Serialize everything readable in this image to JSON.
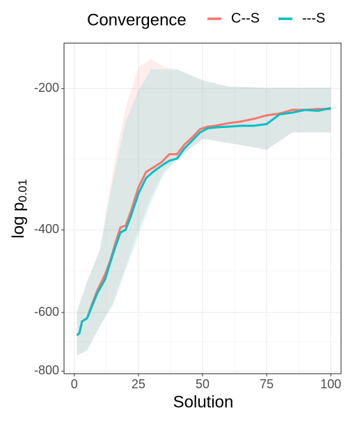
{
  "chart_data": {
    "type": "line",
    "legend_title": "Convergence",
    "legend_position": "top",
    "xlabel": "Solution",
    "ylabel": "log p",
    "ylabel_sub": "0.01",
    "xlim": [
      -4,
      104
    ],
    "xticks": [
      0,
      25,
      50,
      75,
      100
    ],
    "ylim": [
      -810,
      -160
    ],
    "yticks": [
      -200,
      -400,
      -600,
      -800
    ],
    "yscale": "log",
    "grid": true,
    "x": [
      1,
      2,
      3,
      5,
      7,
      9,
      12,
      14,
      16,
      18,
      20,
      22,
      25,
      28,
      31,
      34,
      37,
      40,
      43,
      46,
      49,
      52,
      55,
      60,
      65,
      70,
      75,
      80,
      85,
      90,
      95,
      100
    ],
    "band_x": [
      1,
      5,
      10,
      15,
      20,
      25,
      30,
      35,
      40,
      50,
      60,
      75,
      85,
      100
    ],
    "series": [
      {
        "name": "C--S",
        "color": "#F8766D",
        "values": [
          -671,
          -664,
          -627,
          -617,
          -574,
          -538,
          -498,
          -465,
          -427,
          -395,
          -392,
          -366,
          -325,
          -301,
          -294,
          -287,
          -276,
          -276,
          -263,
          -254,
          -244,
          -241,
          -240,
          -237,
          -235,
          -232,
          -228,
          -226,
          -222,
          -222,
          -221,
          -221
        ],
        "upper": [
          -600,
          -515,
          -440,
          -300,
          -220,
          -180,
          -173,
          -180,
          -182,
          -192,
          -198,
          -199,
          -199,
          -199
        ],
        "lower": [
          -741,
          -720,
          -640,
          -575,
          -480,
          -400,
          -340,
          -300,
          -282,
          -256,
          -261,
          -270,
          -248,
          -248
        ]
      },
      {
        "name": "---S",
        "color": "#00BFC4",
        "values": [
          -671,
          -664,
          -627,
          -617,
          -580,
          -545,
          -510,
          -470,
          -435,
          -405,
          -400,
          -375,
          -335,
          -310,
          -300,
          -292,
          -285,
          -282,
          -268,
          -258,
          -248,
          -243,
          -242,
          -241,
          -240,
          -240,
          -238,
          -227,
          -225,
          -222,
          -223,
          -220
        ],
        "upper": [
          -596,
          -515,
          -442,
          -314,
          -235,
          -202,
          -182,
          -182,
          -182,
          -192,
          -198,
          -199,
          -199,
          -199
        ],
        "lower": [
          -741,
          -724,
          -642,
          -580,
          -488,
          -412,
          -348,
          -304,
          -284,
          -256,
          -261,
          -270,
          -248,
          -248
        ]
      }
    ]
  }
}
